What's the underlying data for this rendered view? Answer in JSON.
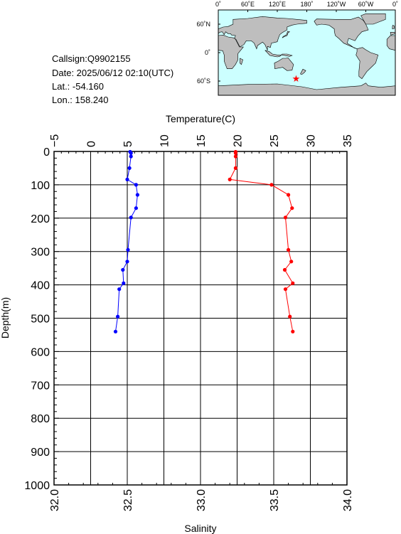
{
  "info": {
    "callsign": "Callsign:Q9902155",
    "date": "Date:  2025/06/12 02:10(UTC)",
    "lat": "Lat.:  -54.160",
    "lon": "Lon.:  158.240"
  },
  "map": {
    "top_labels": [
      "0˚",
      "60˚E",
      "120˚E",
      "180˚",
      "120˚W",
      "60˚W",
      "0˚"
    ],
    "lat_labels": [
      "60˚N",
      "0˚",
      "60˚S"
    ],
    "lon_ticks": [
      0,
      60,
      120,
      180,
      240,
      300,
      360
    ],
    "lat_ticks": [
      60,
      0,
      -60
    ],
    "station": {
      "lon": 158.24,
      "lat": -54.16
    },
    "colors": {
      "ocean": "#ccffff",
      "land": "#bebebe",
      "marker": "#ff0000"
    }
  },
  "chart_data": {
    "type": "line",
    "title": "",
    "ylabel": "Depth(m)",
    "ylim": [
      0,
      1000
    ],
    "yticks": [
      "0",
      "100",
      "200",
      "300",
      "400",
      "500",
      "600",
      "700",
      "800",
      "900",
      "1000"
    ],
    "y_reversed": true,
    "grid": true,
    "top_axis": {
      "label": "Temperature(C)",
      "range": [
        -5,
        35
      ],
      "ticks": [
        "−5",
        "0",
        "5",
        "10",
        "15",
        "20",
        "25",
        "30",
        "35"
      ]
    },
    "bottom_axis": {
      "label": "Salinity",
      "range": [
        32.0,
        34.0
      ],
      "ticks": [
        "32.0",
        "32.5",
        "33.0",
        "33.5",
        "34.0"
      ]
    },
    "series": [
      {
        "axis": "top",
        "color": "#0000ff",
        "points": [
          {
            "x": 5.4,
            "y": 1
          },
          {
            "x": 5.5,
            "y": 5
          },
          {
            "x": 5.5,
            "y": 15
          },
          {
            "x": 5.3,
            "y": 50
          },
          {
            "x": 5.0,
            "y": 84
          },
          {
            "x": 6.2,
            "y": 100
          },
          {
            "x": 6.4,
            "y": 130
          },
          {
            "x": 6.2,
            "y": 170
          },
          {
            "x": 5.5,
            "y": 198
          },
          {
            "x": 5.1,
            "y": 295
          },
          {
            "x": 5.0,
            "y": 330
          },
          {
            "x": 4.4,
            "y": 355
          },
          {
            "x": 4.5,
            "y": 395
          },
          {
            "x": 3.9,
            "y": 413
          },
          {
            "x": 3.7,
            "y": 495
          },
          {
            "x": 3.4,
            "y": 540
          }
        ]
      },
      {
        "axis": "bottom",
        "color": "#ff0000",
        "points": [
          {
            "x": 33.24,
            "y": 1
          },
          {
            "x": 33.24,
            "y": 5
          },
          {
            "x": 33.24,
            "y": 15
          },
          {
            "x": 33.24,
            "y": 50
          },
          {
            "x": 33.2,
            "y": 84
          },
          {
            "x": 33.485,
            "y": 100
          },
          {
            "x": 33.6,
            "y": 130
          },
          {
            "x": 33.625,
            "y": 170
          },
          {
            "x": 33.58,
            "y": 198
          },
          {
            "x": 33.6,
            "y": 295
          },
          {
            "x": 33.62,
            "y": 330
          },
          {
            "x": 33.575,
            "y": 355
          },
          {
            "x": 33.63,
            "y": 395
          },
          {
            "x": 33.58,
            "y": 413
          },
          {
            "x": 33.61,
            "y": 495
          },
          {
            "x": 33.63,
            "y": 540
          }
        ]
      }
    ]
  }
}
